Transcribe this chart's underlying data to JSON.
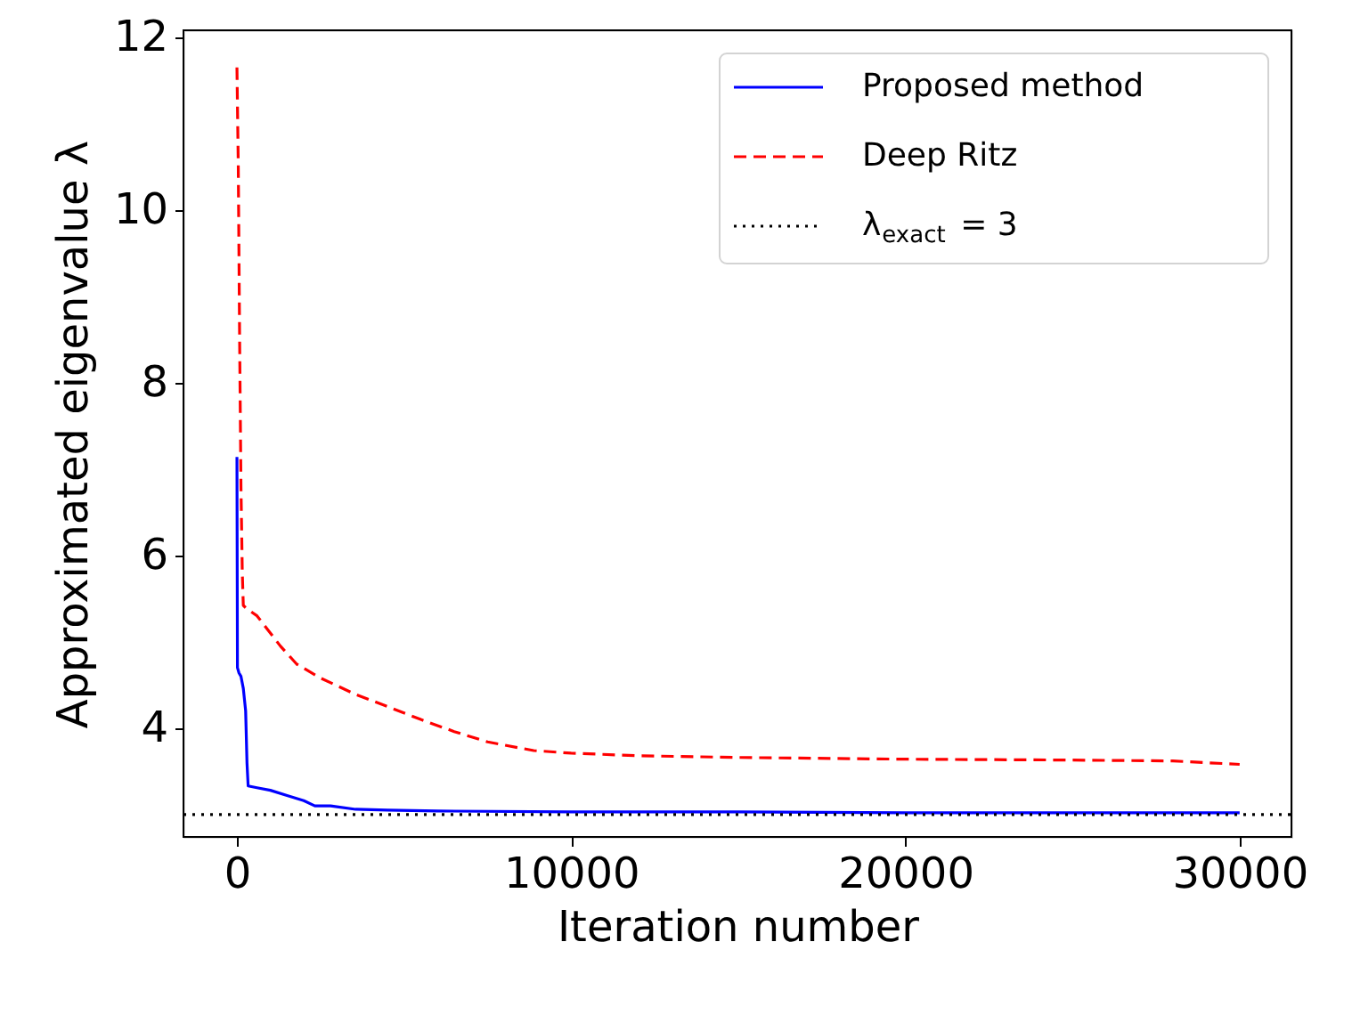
{
  "chart_data": {
    "type": "line",
    "xlabel": "Iteration number",
    "ylabel": "Approximated eigenvalue λ",
    "xlim": [
      -1600,
      31550
    ],
    "ylim": [
      2.74,
      12.08
    ],
    "xticks": [
      0,
      10000,
      20000,
      30000
    ],
    "yticks": [
      4,
      6,
      8,
      10,
      12
    ],
    "grid": false,
    "legend": "top right",
    "marker": "none",
    "series": [
      {
        "name": "Proposed method",
        "color": "#0000ff",
        "line_style": "solid",
        "x": [
          0,
          15,
          60,
          120,
          190,
          260,
          300,
          335,
          600,
          1000,
          1500,
          2000,
          2330,
          2800,
          3550,
          4500,
          6000,
          10000,
          15000,
          20000,
          25000,
          30000
        ],
        "values": [
          7.14,
          4.7,
          4.64,
          4.6,
          4.46,
          4.2,
          3.6,
          3.33,
          3.31,
          3.28,
          3.22,
          3.16,
          3.1,
          3.1,
          3.06,
          3.05,
          3.04,
          3.03,
          3.03,
          3.02,
          3.02,
          3.02
        ]
      },
      {
        "name": "Deep Ritz",
        "color": "#ff0000",
        "line_style": "dashed",
        "x": [
          0,
          40,
          80,
          120,
          160,
          190,
          300,
          600,
          900,
          1300,
          1790,
          2500,
          3550,
          4500,
          5500,
          6500,
          7500,
          8880,
          10000,
          12000,
          15000,
          20000,
          25000,
          28000,
          30000
        ],
        "values": [
          11.65,
          10.5,
          8.5,
          6.8,
          5.8,
          5.42,
          5.38,
          5.3,
          5.15,
          4.95,
          4.74,
          4.58,
          4.39,
          4.25,
          4.1,
          3.96,
          3.84,
          3.74,
          3.71,
          3.68,
          3.66,
          3.64,
          3.63,
          3.62,
          3.58
        ]
      }
    ],
    "ref_lines": [
      {
        "axis": "y",
        "value": 3,
        "label": "λ$_{exact}$ = 3",
        "color": "#000000",
        "line_style": "dotted"
      }
    ]
  }
}
